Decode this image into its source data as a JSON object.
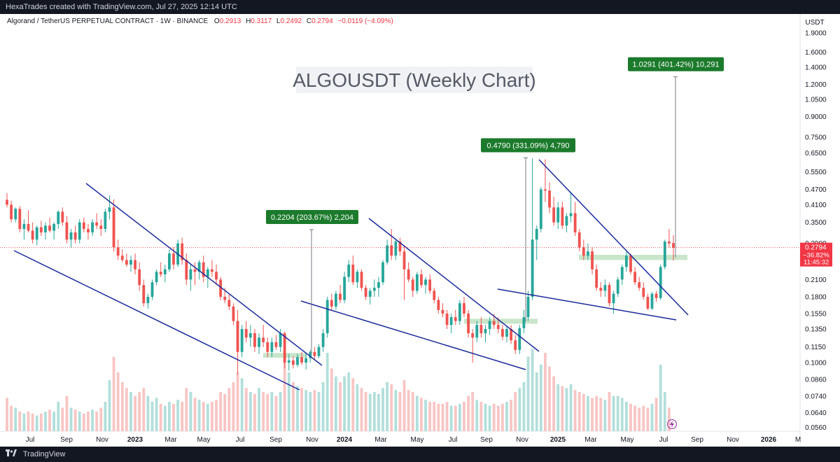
{
  "header": {
    "credit": "HexaTrades created with TradingView.com, Jul 27, 2025 12:14 UTC"
  },
  "legend": {
    "symbol": "Algorand / TetherUS PERPETUAL CONTRACT · 1W · BINANCE",
    "o_label": "O",
    "o_value": "0.2913",
    "h_label": "H",
    "h_value": "0.3117",
    "l_label": "L",
    "l_value": "0.2492",
    "c_label": "C",
    "c_value": "0.2794",
    "change": "−0.0119 (−4.09%)"
  },
  "footer": {
    "brand": "TradingView"
  },
  "colors": {
    "up": "#26a69a",
    "down": "#ef5350",
    "up_volume": "#b2dfdb",
    "down_volume": "#f8c5c4",
    "trendline": "#1a2a9c",
    "zone": "#a5d6a7",
    "callout": "#1b7a2b",
    "price_tag": "#f23645"
  },
  "chart_data": {
    "type": "candlestick",
    "title": "ALGOUSDT (Weekly Chart)",
    "y_axis": {
      "unit": "USDT",
      "scale": "log",
      "range": [
        0.056,
        2.05
      ],
      "ticks": [
        "1.9000",
        "1.6000",
        "1.4000",
        "1.2000",
        "1.0500",
        "0.9000",
        "0.7500",
        "0.6500",
        "0.5500",
        "0.4700",
        "0.4100",
        "0.3500",
        "0.2900",
        "0.2100",
        "0.1800",
        "0.1550",
        "0.1350",
        "0.1150",
        "0.1000",
        "0.0860",
        "0.0740",
        "0.0640",
        "0.0560"
      ]
    },
    "x_axis": {
      "labels": [
        "Jul",
        "Sep",
        "Nov",
        "2023",
        "Mar",
        "May",
        "Jul",
        "Sep",
        "Nov",
        "2024",
        "Mar",
        "May",
        "Jul",
        "Sep",
        "Nov",
        "2025",
        "Mar",
        "May",
        "Jul",
        "Sep",
        "Nov",
        "2026",
        "M"
      ],
      "bold": [
        "2023",
        "2024",
        "2025",
        "2026"
      ]
    },
    "current_price": {
      "value": 0.2794,
      "label": "0.2794",
      "change": "−36.82%",
      "countdown": "11:45:32"
    },
    "measurements": [
      {
        "label": "0.2204 (203.67%) 2,204",
        "from": 0.108,
        "to": 0.328
      },
      {
        "label": "0.4790 (331.09%) 4,790",
        "from": 0.1445,
        "to": 0.623
      },
      {
        "label": "1.0291 (401.42%) 10,291",
        "from": 0.2562,
        "to": 1.285
      }
    ],
    "support_zones": [
      {
        "from": 0.1045,
        "to": 0.109
      },
      {
        "from": 0.1415,
        "to": 0.148
      },
      {
        "from": 0.25,
        "to": 0.262
      }
    ],
    "candles": [
      [
        0.428,
        0.455,
        0.4,
        0.41
      ],
      [
        0.41,
        0.425,
        0.35,
        0.36
      ],
      [
        0.36,
        0.4,
        0.35,
        0.395
      ],
      [
        0.395,
        0.405,
        0.32,
        0.33
      ],
      [
        0.33,
        0.36,
        0.3,
        0.345
      ],
      [
        0.345,
        0.39,
        0.32,
        0.325
      ],
      [
        0.325,
        0.35,
        0.29,
        0.3
      ],
      [
        0.3,
        0.34,
        0.285,
        0.335
      ],
      [
        0.335,
        0.355,
        0.31,
        0.32
      ],
      [
        0.32,
        0.35,
        0.3,
        0.34
      ],
      [
        0.34,
        0.365,
        0.32,
        0.325
      ],
      [
        0.325,
        0.35,
        0.3,
        0.345
      ],
      [
        0.345,
        0.39,
        0.33,
        0.385
      ],
      [
        0.385,
        0.4,
        0.34,
        0.35
      ],
      [
        0.35,
        0.37,
        0.29,
        0.3
      ],
      [
        0.3,
        0.33,
        0.28,
        0.32
      ],
      [
        0.32,
        0.34,
        0.29,
        0.3
      ],
      [
        0.3,
        0.36,
        0.29,
        0.35
      ],
      [
        0.35,
        0.365,
        0.32,
        0.33
      ],
      [
        0.33,
        0.345,
        0.3,
        0.32
      ],
      [
        0.32,
        0.36,
        0.31,
        0.35
      ],
      [
        0.35,
        0.38,
        0.33,
        0.34
      ],
      [
        0.34,
        0.36,
        0.31,
        0.33
      ],
      [
        0.33,
        0.395,
        0.32,
        0.385
      ],
      [
        0.385,
        0.445,
        0.36,
        0.4
      ],
      [
        0.4,
        0.43,
        0.27,
        0.28
      ],
      [
        0.28,
        0.3,
        0.25,
        0.26
      ],
      [
        0.26,
        0.275,
        0.245,
        0.25
      ],
      [
        0.25,
        0.265,
        0.235,
        0.24
      ],
      [
        0.24,
        0.26,
        0.225,
        0.25
      ],
      [
        0.25,
        0.265,
        0.22,
        0.23
      ],
      [
        0.23,
        0.245,
        0.19,
        0.2
      ],
      [
        0.2,
        0.21,
        0.165,
        0.17
      ],
      [
        0.17,
        0.185,
        0.162,
        0.18
      ],
      [
        0.18,
        0.21,
        0.175,
        0.205
      ],
      [
        0.205,
        0.23,
        0.2,
        0.225
      ],
      [
        0.225,
        0.245,
        0.215,
        0.22
      ],
      [
        0.22,
        0.24,
        0.205,
        0.23
      ],
      [
        0.23,
        0.275,
        0.225,
        0.265
      ],
      [
        0.265,
        0.28,
        0.23,
        0.24
      ],
      [
        0.24,
        0.3,
        0.235,
        0.29
      ],
      [
        0.29,
        0.305,
        0.24,
        0.25
      ],
      [
        0.25,
        0.265,
        0.2,
        0.21
      ],
      [
        0.21,
        0.24,
        0.19,
        0.23
      ],
      [
        0.23,
        0.245,
        0.2,
        0.225
      ],
      [
        0.225,
        0.25,
        0.21,
        0.245
      ],
      [
        0.245,
        0.26,
        0.205,
        0.215
      ],
      [
        0.215,
        0.235,
        0.195,
        0.23
      ],
      [
        0.23,
        0.25,
        0.215,
        0.225
      ],
      [
        0.225,
        0.24,
        0.2,
        0.21
      ],
      [
        0.21,
        0.215,
        0.175,
        0.18
      ],
      [
        0.18,
        0.195,
        0.17,
        0.175
      ],
      [
        0.175,
        0.185,
        0.16,
        0.165
      ],
      [
        0.165,
        0.17,
        0.14,
        0.145
      ],
      [
        0.145,
        0.16,
        0.09,
        0.11
      ],
      [
        0.11,
        0.14,
        0.105,
        0.135
      ],
      [
        0.135,
        0.145,
        0.12,
        0.125
      ],
      [
        0.125,
        0.14,
        0.115,
        0.13
      ],
      [
        0.13,
        0.135,
        0.11,
        0.115
      ],
      [
        0.115,
        0.13,
        0.108,
        0.125
      ],
      [
        0.125,
        0.14,
        0.115,
        0.12
      ],
      [
        0.12,
        0.125,
        0.105,
        0.11
      ],
      [
        0.11,
        0.125,
        0.105,
        0.12
      ],
      [
        0.12,
        0.128,
        0.112,
        0.115
      ],
      [
        0.115,
        0.135,
        0.11,
        0.13
      ],
      [
        0.13,
        0.132,
        0.095,
        0.1
      ],
      [
        0.1,
        0.108,
        0.093,
        0.102
      ],
      [
        0.102,
        0.106,
        0.095,
        0.098
      ],
      [
        0.098,
        0.108,
        0.096,
        0.105
      ],
      [
        0.105,
        0.11,
        0.098,
        0.1
      ],
      [
        0.1,
        0.108,
        0.094,
        0.104
      ],
      [
        0.104,
        0.112,
        0.1,
        0.11
      ],
      [
        0.11,
        0.115,
        0.102,
        0.106
      ],
      [
        0.106,
        0.118,
        0.104,
        0.115
      ],
      [
        0.115,
        0.135,
        0.11,
        0.13
      ],
      [
        0.13,
        0.18,
        0.125,
        0.175
      ],
      [
        0.175,
        0.185,
        0.16,
        0.165
      ],
      [
        0.165,
        0.19,
        0.16,
        0.185
      ],
      [
        0.185,
        0.2,
        0.17,
        0.175
      ],
      [
        0.175,
        0.225,
        0.17,
        0.215
      ],
      [
        0.215,
        0.25,
        0.205,
        0.24
      ],
      [
        0.24,
        0.26,
        0.2,
        0.205
      ],
      [
        0.205,
        0.23,
        0.195,
        0.225
      ],
      [
        0.225,
        0.23,
        0.19,
        0.195
      ],
      [
        0.195,
        0.2,
        0.175,
        0.18
      ],
      [
        0.18,
        0.195,
        0.168,
        0.19
      ],
      [
        0.19,
        0.21,
        0.18,
        0.195
      ],
      [
        0.195,
        0.215,
        0.18,
        0.205
      ],
      [
        0.205,
        0.25,
        0.2,
        0.245
      ],
      [
        0.245,
        0.3,
        0.24,
        0.285
      ],
      [
        0.285,
        0.33,
        0.25,
        0.26
      ],
      [
        0.26,
        0.3,
        0.25,
        0.295
      ],
      [
        0.295,
        0.305,
        0.26,
        0.27
      ],
      [
        0.27,
        0.285,
        0.175,
        0.23
      ],
      [
        0.23,
        0.245,
        0.205,
        0.21
      ],
      [
        0.21,
        0.215,
        0.18,
        0.19
      ],
      [
        0.19,
        0.225,
        0.185,
        0.22
      ],
      [
        0.22,
        0.23,
        0.195,
        0.2
      ],
      [
        0.2,
        0.215,
        0.185,
        0.21
      ],
      [
        0.21,
        0.22,
        0.185,
        0.19
      ],
      [
        0.19,
        0.195,
        0.17,
        0.175
      ],
      [
        0.175,
        0.18,
        0.155,
        0.16
      ],
      [
        0.16,
        0.17,
        0.15,
        0.155
      ],
      [
        0.155,
        0.16,
        0.135,
        0.14
      ],
      [
        0.14,
        0.155,
        0.13,
        0.15
      ],
      [
        0.15,
        0.16,
        0.14,
        0.145
      ],
      [
        0.145,
        0.175,
        0.14,
        0.17
      ],
      [
        0.17,
        0.18,
        0.15,
        0.155
      ],
      [
        0.155,
        0.16,
        0.125,
        0.13
      ],
      [
        0.13,
        0.135,
        0.1,
        0.125
      ],
      [
        0.125,
        0.145,
        0.12,
        0.14
      ],
      [
        0.14,
        0.15,
        0.125,
        0.13
      ],
      [
        0.13,
        0.14,
        0.12,
        0.135
      ],
      [
        0.135,
        0.15,
        0.128,
        0.145
      ],
      [
        0.145,
        0.155,
        0.135,
        0.14
      ],
      [
        0.14,
        0.15,
        0.13,
        0.135
      ],
      [
        0.135,
        0.14,
        0.122,
        0.126
      ],
      [
        0.126,
        0.138,
        0.12,
        0.135
      ],
      [
        0.135,
        0.14,
        0.118,
        0.122
      ],
      [
        0.122,
        0.128,
        0.108,
        0.112
      ],
      [
        0.112,
        0.14,
        0.108,
        0.136
      ],
      [
        0.136,
        0.16,
        0.13,
        0.15
      ],
      [
        0.15,
        0.19,
        0.145,
        0.18
      ],
      [
        0.18,
        0.62,
        0.175,
        0.3
      ],
      [
        0.3,
        0.34,
        0.25,
        0.33
      ],
      [
        0.33,
        0.48,
        0.32,
        0.47
      ],
      [
        0.47,
        0.615,
        0.42,
        0.465
      ],
      [
        0.465,
        0.5,
        0.38,
        0.4
      ],
      [
        0.4,
        0.44,
        0.34,
        0.35
      ],
      [
        0.35,
        0.42,
        0.33,
        0.4
      ],
      [
        0.4,
        0.42,
        0.33,
        0.34
      ],
      [
        0.34,
        0.38,
        0.32,
        0.37
      ],
      [
        0.37,
        0.46,
        0.35,
        0.38
      ],
      [
        0.38,
        0.42,
        0.31,
        0.32
      ],
      [
        0.32,
        0.33,
        0.27,
        0.28
      ],
      [
        0.28,
        0.3,
        0.25,
        0.26
      ],
      [
        0.26,
        0.29,
        0.25,
        0.27
      ],
      [
        0.27,
        0.28,
        0.22,
        0.23
      ],
      [
        0.23,
        0.24,
        0.19,
        0.195
      ],
      [
        0.195,
        0.205,
        0.18,
        0.19
      ],
      [
        0.19,
        0.21,
        0.18,
        0.2
      ],
      [
        0.2,
        0.205,
        0.165,
        0.17
      ],
      [
        0.17,
        0.19,
        0.155,
        0.185
      ],
      [
        0.185,
        0.215,
        0.18,
        0.21
      ],
      [
        0.21,
        0.24,
        0.2,
        0.235
      ],
      [
        0.235,
        0.27,
        0.225,
        0.26
      ],
      [
        0.26,
        0.265,
        0.22,
        0.225
      ],
      [
        0.225,
        0.235,
        0.2,
        0.205
      ],
      [
        0.205,
        0.215,
        0.19,
        0.195
      ],
      [
        0.195,
        0.205,
        0.175,
        0.18
      ],
      [
        0.18,
        0.185,
        0.16,
        0.162
      ],
      [
        0.162,
        0.188,
        0.16,
        0.185
      ],
      [
        0.185,
        0.19,
        0.172,
        0.178
      ],
      [
        0.178,
        0.24,
        0.175,
        0.235
      ],
      [
        0.235,
        0.3,
        0.23,
        0.295
      ],
      [
        0.295,
        0.33,
        0.28,
        0.29
      ],
      [
        0.291,
        0.312,
        0.249,
        0.279
      ]
    ],
    "volumes": [
      0.17,
      0.13,
      0.12,
      0.1,
      0.09,
      0.1,
      0.09,
      0.08,
      0.09,
      0.1,
      0.11,
      0.1,
      0.15,
      0.12,
      0.18,
      0.12,
      0.11,
      0.1,
      0.09,
      0.1,
      0.11,
      0.1,
      0.12,
      0.15,
      0.26,
      0.38,
      0.3,
      0.25,
      0.22,
      0.2,
      0.18,
      0.2,
      0.22,
      0.18,
      0.15,
      0.17,
      0.14,
      0.13,
      0.15,
      0.14,
      0.16,
      0.15,
      0.22,
      0.2,
      0.17,
      0.16,
      0.15,
      0.14,
      0.15,
      0.16,
      0.2,
      0.19,
      0.22,
      0.25,
      0.3,
      0.27,
      0.22,
      0.2,
      0.19,
      0.22,
      0.2,
      0.19,
      0.2,
      0.18,
      0.2,
      0.35,
      0.3,
      0.25,
      0.23,
      0.22,
      0.21,
      0.2,
      0.21,
      0.2,
      0.25,
      0.4,
      0.32,
      0.28,
      0.25,
      0.28,
      0.3,
      0.27,
      0.24,
      0.22,
      0.2,
      0.19,
      0.2,
      0.19,
      0.22,
      0.25,
      0.24,
      0.21,
      0.2,
      0.26,
      0.21,
      0.2,
      0.18,
      0.17,
      0.16,
      0.15,
      0.15,
      0.14,
      0.14,
      0.15,
      0.13,
      0.13,
      0.14,
      0.15,
      0.18,
      0.2,
      0.16,
      0.15,
      0.14,
      0.13,
      0.14,
      0.13,
      0.14,
      0.15,
      0.16,
      0.2,
      0.22,
      0.25,
      0.38,
      0.42,
      0.3,
      0.34,
      0.4,
      0.33,
      0.28,
      0.24,
      0.23,
      0.22,
      0.24,
      0.21,
      0.2,
      0.19,
      0.18,
      0.17,
      0.18,
      0.17,
      0.16,
      0.2,
      0.18,
      0.18,
      0.17,
      0.15,
      0.14,
      0.13,
      0.12,
      0.13,
      0.12,
      0.14,
      0.17,
      0.34,
      0.2,
      0.12
    ]
  }
}
